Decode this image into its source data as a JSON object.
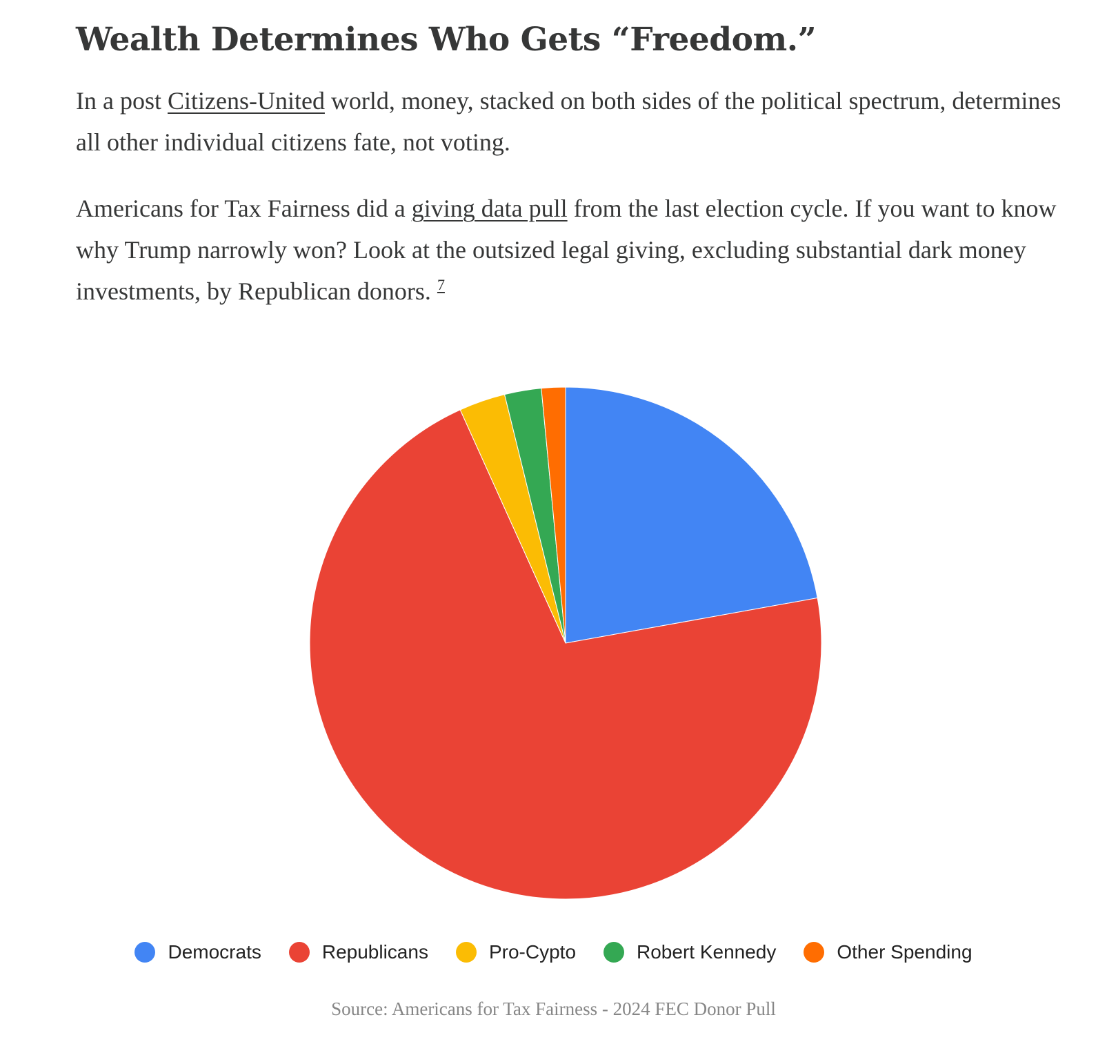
{
  "article": {
    "headline": "Wealth Determines Who Gets “Freedom.”",
    "para1": {
      "pre": "In a post ",
      "link": "Citizens-United",
      "post": " world, money, stacked on both sides of the political spectrum, determines all other individual citizens fate, not voting."
    },
    "para2": {
      "pre": "Americans for Tax Fairness did a ",
      "link": "giving data pull",
      "post": " from the last election cycle. If you want to know why Trump narrowly won? Look at the outsized legal giving, excluding substantial dark money investments, by Republican donors. ",
      "footnote": "7"
    }
  },
  "chart_data": {
    "type": "pie",
    "title": "",
    "categories": [
      "Democrats",
      "Republicans",
      "Pro-Cypto",
      "Robert Kennedy",
      "Other Spending"
    ],
    "values": [
      22,
      70.5,
      2.9,
      2.3,
      1.5
    ],
    "colors": [
      "#4285F4",
      "#EA4335",
      "#FBBC04",
      "#34A853",
      "#FF6D01"
    ],
    "start": "12 o'clock",
    "direction": "clockwise",
    "legend_position": "bottom"
  },
  "caption": "Source: Americans for Tax Fairness - 2024 FEC Donor Pull"
}
